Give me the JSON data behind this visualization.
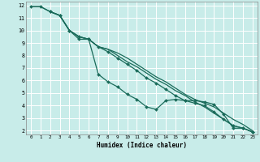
{
  "xlabel": "Humidex (Indice chaleur)",
  "bg_color": "#c8ece9",
  "grid_color": "#ffffff",
  "line_color": "#1a6b5a",
  "xlim": [
    -0.5,
    23.5
  ],
  "ylim": [
    1.7,
    12.3
  ],
  "xticks": [
    0,
    1,
    2,
    3,
    4,
    5,
    6,
    7,
    8,
    9,
    10,
    11,
    12,
    13,
    14,
    15,
    16,
    17,
    18,
    19,
    20,
    21,
    22,
    23
  ],
  "yticks": [
    2,
    3,
    4,
    5,
    6,
    7,
    8,
    9,
    10,
    11,
    12
  ],
  "series": [
    {
      "x": [
        0,
        1,
        2,
        3,
        4,
        5,
        6,
        7,
        8,
        9,
        10,
        11,
        12,
        13,
        14,
        15,
        16,
        17,
        18,
        19,
        20,
        21,
        22,
        23
      ],
      "y": [
        11.9,
        11.9,
        11.5,
        11.2,
        10.0,
        9.5,
        9.3,
        8.7,
        8.5,
        8.2,
        7.8,
        7.3,
        6.8,
        6.3,
        5.9,
        5.4,
        4.9,
        4.5,
        4.2,
        3.9,
        3.4,
        2.9,
        2.5,
        2.0
      ],
      "marker": false
    },
    {
      "x": [
        0,
        1,
        2,
        3,
        4,
        5,
        6,
        7,
        8,
        9,
        10,
        11,
        12,
        13,
        14,
        15,
        16,
        17,
        18,
        19,
        20,
        21,
        22,
        23
      ],
      "y": [
        11.9,
        11.9,
        11.5,
        11.2,
        10.0,
        9.3,
        9.3,
        6.5,
        5.9,
        5.5,
        4.9,
        4.5,
        3.9,
        3.7,
        4.4,
        4.5,
        4.4,
        4.4,
        4.3,
        4.1,
        3.3,
        2.2,
        2.2,
        1.9
      ],
      "marker": true
    },
    {
      "x": [
        2,
        3,
        4,
        5,
        6,
        7,
        8,
        9,
        10,
        11,
        12,
        13,
        14,
        15,
        16,
        17,
        18,
        19,
        20,
        21,
        22,
        23
      ],
      "y": [
        11.5,
        11.2,
        10.0,
        9.5,
        9.3,
        8.7,
        8.5,
        8.0,
        7.5,
        7.1,
        6.6,
        6.1,
        5.7,
        5.2,
        4.8,
        4.3,
        3.9,
        3.4,
        2.9,
        2.4,
        2.2,
        1.9
      ],
      "marker": false
    },
    {
      "x": [
        2,
        3,
        4,
        5,
        6,
        7,
        8,
        9,
        10,
        11,
        12,
        13,
        14,
        15,
        16,
        17,
        18,
        19,
        20,
        21,
        22,
        23
      ],
      "y": [
        11.5,
        11.2,
        10.0,
        9.5,
        9.3,
        8.7,
        8.3,
        7.8,
        7.3,
        6.8,
        6.2,
        5.8,
        5.3,
        4.8,
        4.4,
        4.2,
        4.0,
        3.5,
        2.9,
        2.4,
        2.2,
        1.9
      ],
      "marker": true
    }
  ]
}
